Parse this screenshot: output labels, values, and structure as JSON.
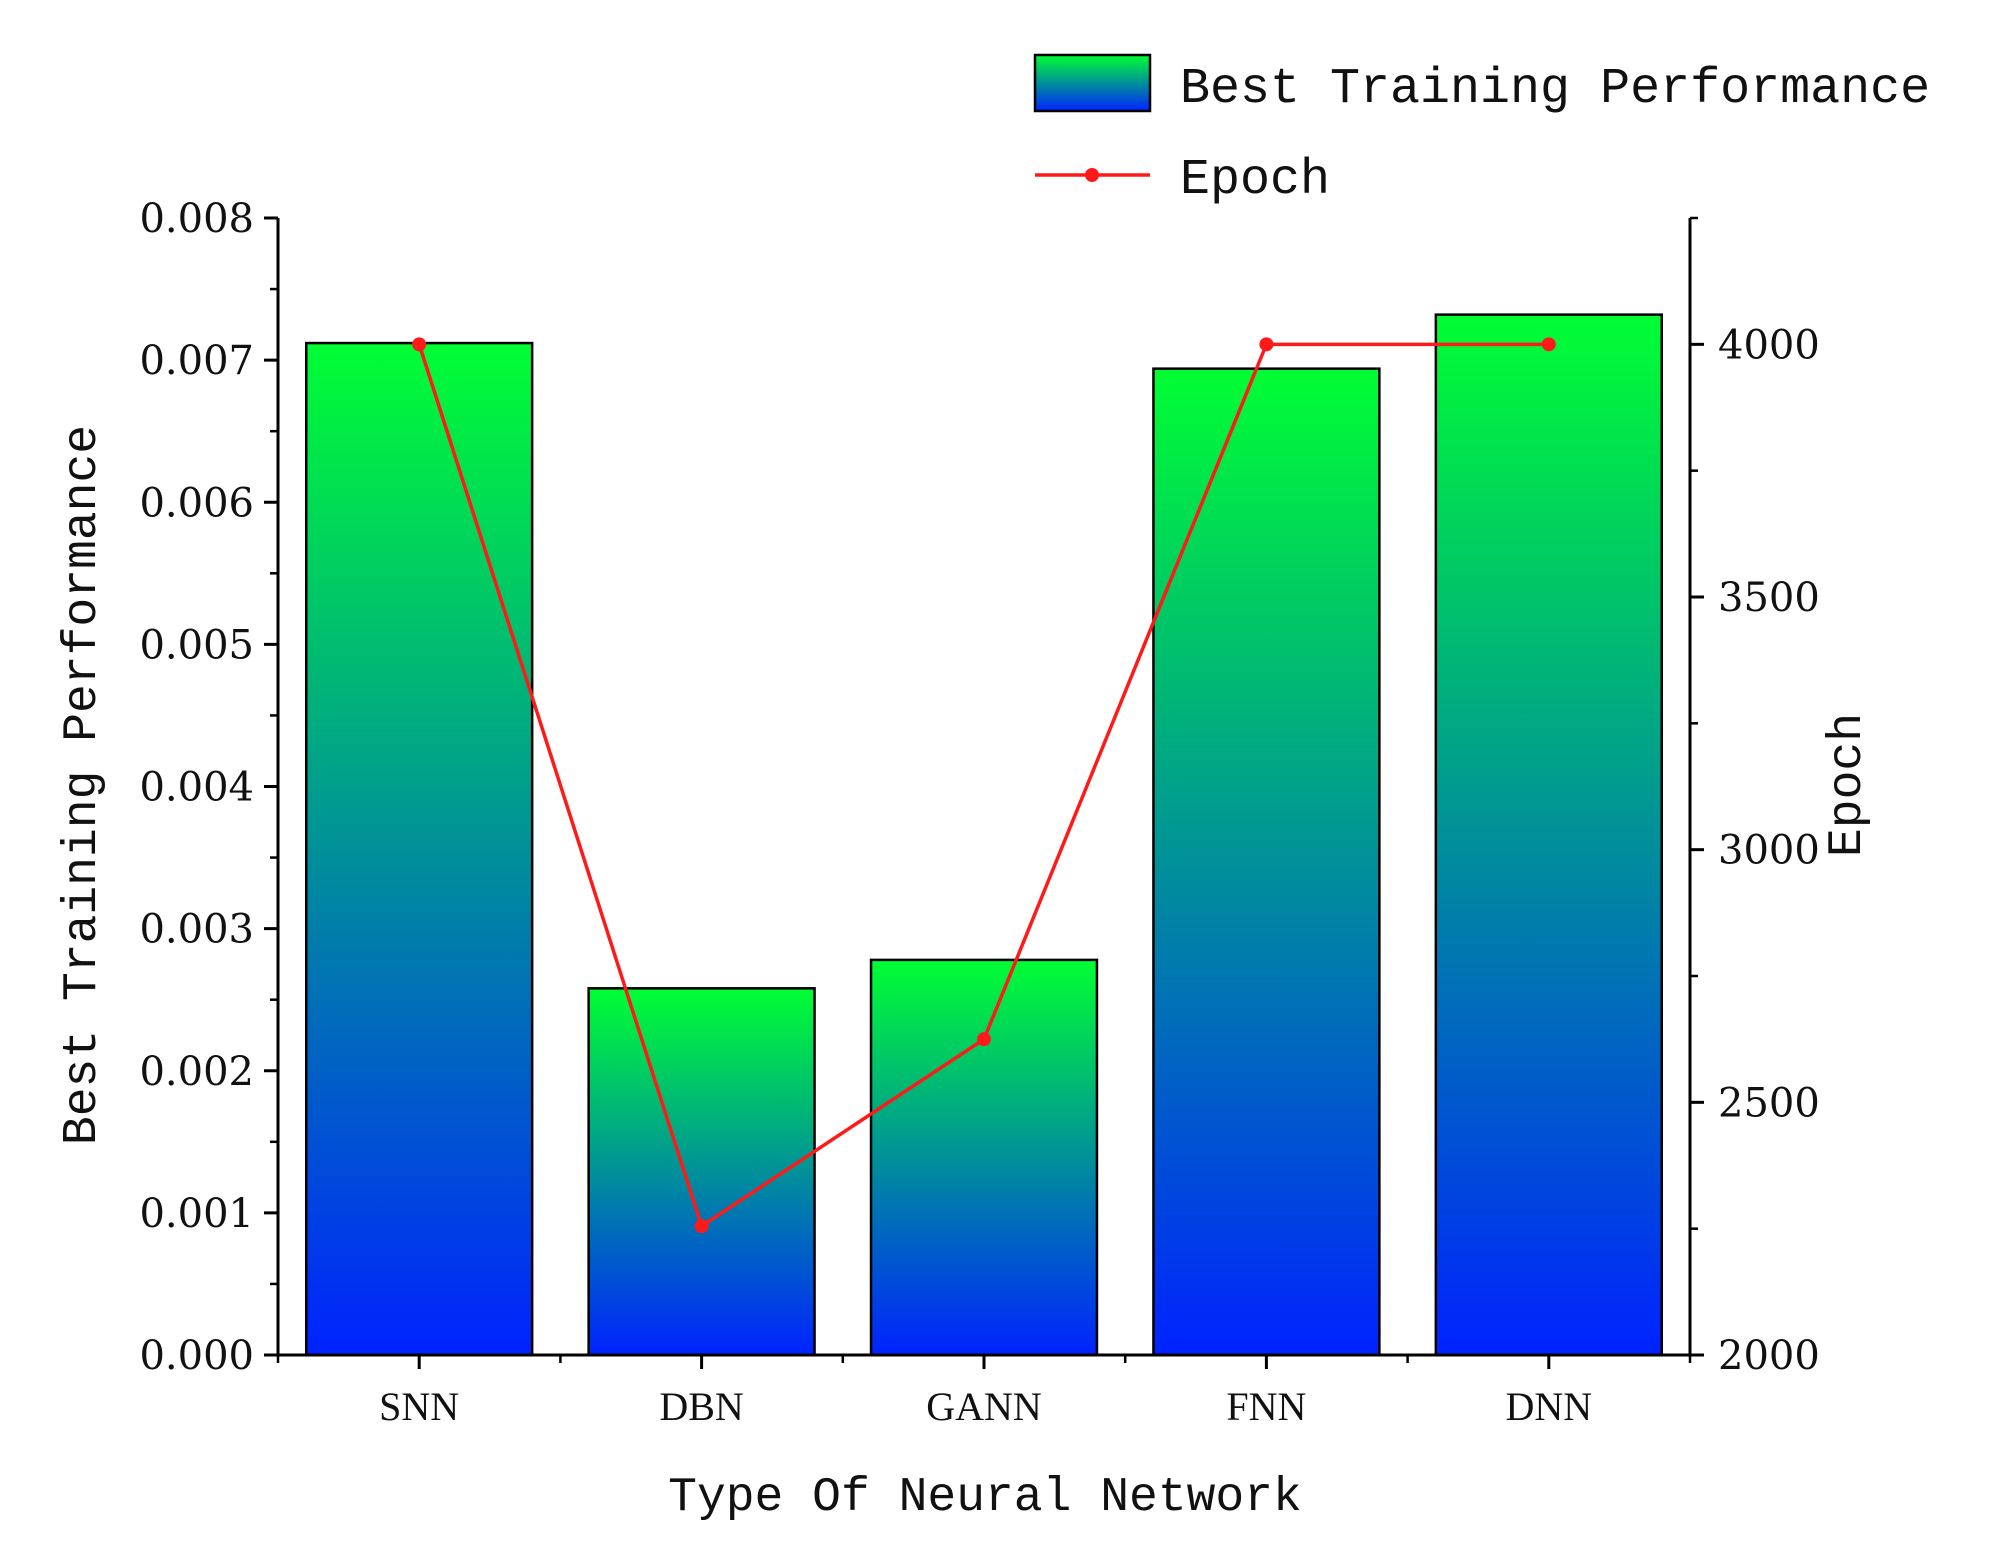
{
  "chart_data": {
    "type": "bar",
    "title": "",
    "categories": [
      "SNN",
      "DBN",
      "GANN",
      "FNN",
      "DNN"
    ],
    "xlabel": "Type Of Neural Network",
    "ylabel": "Best Training Performance",
    "y2label": "Epoch",
    "ylim": [
      0,
      0.008
    ],
    "y2lim": [
      2000,
      4250
    ],
    "yticks": [
      "0.000",
      "0.001",
      "0.002",
      "0.003",
      "0.004",
      "0.005",
      "0.006",
      "0.007",
      "0.008"
    ],
    "y2ticks": [
      "2000",
      "2500",
      "3000",
      "3500",
      "4000"
    ],
    "series": [
      {
        "name": "Best Training Performance",
        "type": "bar",
        "axis": "left",
        "values": [
          0.00712,
          0.00258,
          0.00278,
          0.00694,
          0.00732
        ],
        "gradient": [
          "#00ff33",
          "#0022ff"
        ]
      },
      {
        "name": "Epoch",
        "type": "line",
        "axis": "right",
        "values": [
          4000,
          2255,
          2625,
          4000,
          4000
        ],
        "color": "#ff1a1a"
      }
    ],
    "legend_position": "top-right",
    "grid": false
  }
}
